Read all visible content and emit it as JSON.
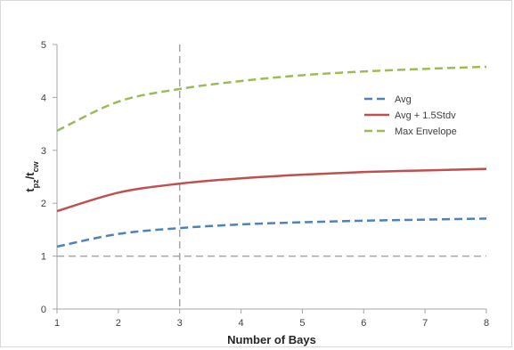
{
  "chart_data": {
    "type": "line",
    "xlabel": "Number of Bays",
    "ylabel_main": "t",
    "ylabel_sub1": "pz",
    "ylabel_sep": "/t",
    "ylabel_sub2": "cw",
    "x": [
      1,
      2,
      3,
      4,
      5,
      6,
      7,
      8
    ],
    "xlim": [
      1,
      8
    ],
    "ylim": [
      0,
      5
    ],
    "x_ticks": [
      "1",
      "2",
      "3",
      "4",
      "5",
      "6",
      "7",
      "8"
    ],
    "y_ticks": [
      "0",
      "1",
      "2",
      "3",
      "4",
      "5"
    ],
    "grid": false,
    "legend_position": "right",
    "reference_lines": [
      {
        "orientation": "horizontal",
        "value": 1,
        "color": "#a6a6a6",
        "style": "dashed"
      },
      {
        "orientation": "vertical",
        "value": 3,
        "color": "#a6a6a6",
        "style": "dashed"
      }
    ],
    "series": [
      {
        "name": "Avg",
        "color": "#4f81bd",
        "style": "dashed",
        "values": [
          1.18,
          1.42,
          1.53,
          1.6,
          1.64,
          1.67,
          1.69,
          1.71
        ]
      },
      {
        "name": "Avg + 1.5Stdv",
        "color": "#c0504d",
        "style": "solid",
        "values": [
          1.85,
          2.2,
          2.37,
          2.47,
          2.54,
          2.59,
          2.62,
          2.65
        ]
      },
      {
        "name": "Max Envelope",
        "color": "#9bbb59",
        "style": "dashed",
        "values": [
          3.37,
          3.92,
          4.16,
          4.31,
          4.42,
          4.49,
          4.54,
          4.58
        ]
      }
    ]
  }
}
